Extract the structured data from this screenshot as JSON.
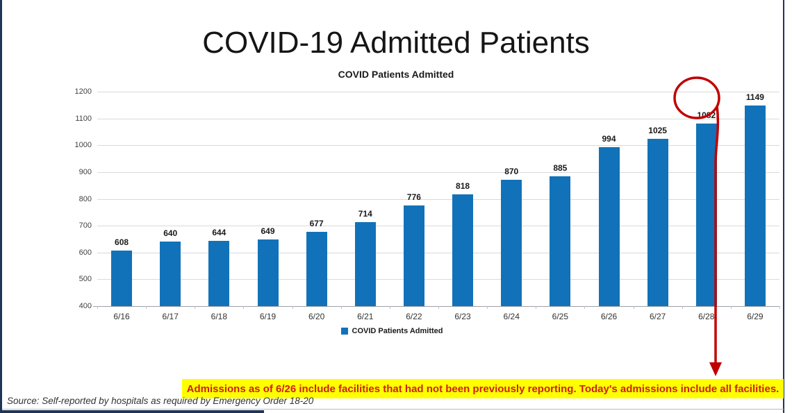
{
  "page": {
    "main_title": "COVID-19 Admitted Patients",
    "annotation": "Admissions as of 6/26 include facilities that had not been previously reporting. Today's admissions include all facilities.",
    "source_note": "Source: Self-reported by hospitals as required by Emergency Order 18-20",
    "colors": {
      "bar": "#1272b9",
      "highlight_red": "#c00000",
      "annotation_text_red": "#d01f10",
      "annotation_bg_yellow": "#ffff00",
      "frame_navy": "#1f3557",
      "gridline_gray": "#d9d9d9"
    }
  },
  "chart_data": {
    "type": "bar",
    "title": "COVID Patients Admitted",
    "legend_label": "COVID Patients Admitted",
    "legend_position": "bottom",
    "categories": [
      "6/16",
      "6/17",
      "6/18",
      "6/19",
      "6/20",
      "6/21",
      "6/22",
      "6/23",
      "6/24",
      "6/25",
      "6/26",
      "6/27",
      "6/28",
      "6/29"
    ],
    "values": [
      608,
      640,
      644,
      649,
      677,
      714,
      776,
      818,
      870,
      885,
      994,
      1025,
      1082,
      1149
    ],
    "xlabel": "",
    "ylabel": "",
    "ylim": [
      400,
      1200
    ],
    "yticks": [
      400,
      500,
      600,
      700,
      800,
      900,
      1000,
      1100,
      1200
    ],
    "grid": true,
    "data_labels": true,
    "highlighted_category": "6/29",
    "highlighted_value": 1149
  }
}
